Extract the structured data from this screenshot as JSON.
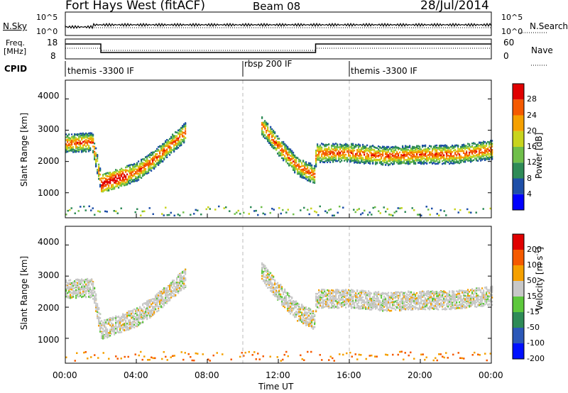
{
  "header": {
    "station": "Fort Hays West (fitACF)",
    "beam": "Beam 08",
    "date": "28/Jul/2014"
  },
  "noise_panel": {
    "left_label": "N.Sky",
    "right_label": "N.Search",
    "left_ticks": [
      "10^5",
      "10^0"
    ],
    "right_ticks": [
      "10^5",
      "10^0"
    ]
  },
  "freq_panel": {
    "left_label_1": "Freq.",
    "left_label_2": "[MHz]",
    "right_label": "Nave",
    "left_ticks": [
      "18",
      "8"
    ],
    "right_ticks": [
      "60",
      "0"
    ]
  },
  "cpid": {
    "label": "CPID",
    "segments": [
      {
        "text": "themis -3300 IF",
        "start_ut": 0
      },
      {
        "text": "rbsp 200 IF",
        "start_ut": 10
      },
      {
        "text": "themis -3300 IF",
        "start_ut": 16
      }
    ]
  },
  "x_axis": {
    "title": "Time UT",
    "ticks": [
      "00:00",
      "04:00",
      "08:00",
      "12:00",
      "16:00",
      "20:00",
      "00:00"
    ],
    "range_hours": [
      0,
      24
    ]
  },
  "power_panel": {
    "ylabel": "Slant Range [km]",
    "yticks": [
      "1000",
      "2000",
      "3000",
      "4000"
    ],
    "colorbar_label": "Power [dB]",
    "colorbar_ticks": [
      "28",
      "24",
      "20",
      "16",
      "12",
      "8",
      "4"
    ],
    "colors": [
      "#0000ff",
      "#1e4fa8",
      "#2e8b57",
      "#6fbf4a",
      "#c8d41e",
      "#f5a000",
      "#f55a00",
      "#e00000"
    ]
  },
  "velocity_panel": {
    "ylabel": "Slant Range [km]",
    "yticks": [
      "1000",
      "2000",
      "3000",
      "4000"
    ],
    "colorbar_label": "Velocity [m s",
    "colorbar_exp": "-1",
    "colorbar_ticks": [
      "200",
      "100",
      "50",
      "15",
      "-15",
      "-50",
      "-100",
      "-200"
    ],
    "colors": [
      "#0010ff",
      "#2c58b8",
      "#2e8b57",
      "#5dc83c",
      "#c8c8c8",
      "#f5a000",
      "#f55a00",
      "#e00000"
    ]
  },
  "chart_data": {
    "type": "heatmap",
    "title": "Fort Hays West (fitACF)",
    "xlabel": "Time UT",
    "ylabel": "Slant Range [km]",
    "xlim": [
      0,
      24
    ],
    "ylim": [
      200,
      4600
    ],
    "echo_band_center_km": {
      "x": [
        0,
        1.5,
        2,
        3,
        4,
        5,
        6,
        6.8,
        7,
        9,
        10,
        11,
        12,
        13,
        14,
        14.1,
        16,
        18,
        20,
        22,
        24
      ],
      "values": [
        2600,
        2650,
        1300,
        1500,
        1700,
        2100,
        2600,
        3000,
        null,
        null,
        null,
        3200,
        2500,
        1900,
        1600,
        2300,
        2300,
        2200,
        2250,
        2250,
        2400
      ]
    },
    "series": [
      {
        "name": "Power [dB]",
        "colorbar_range": [
          0,
          30
        ]
      },
      {
        "name": "Velocity [m s-1]",
        "colorbar_range": [
          -250,
          250
        ]
      }
    ]
  }
}
